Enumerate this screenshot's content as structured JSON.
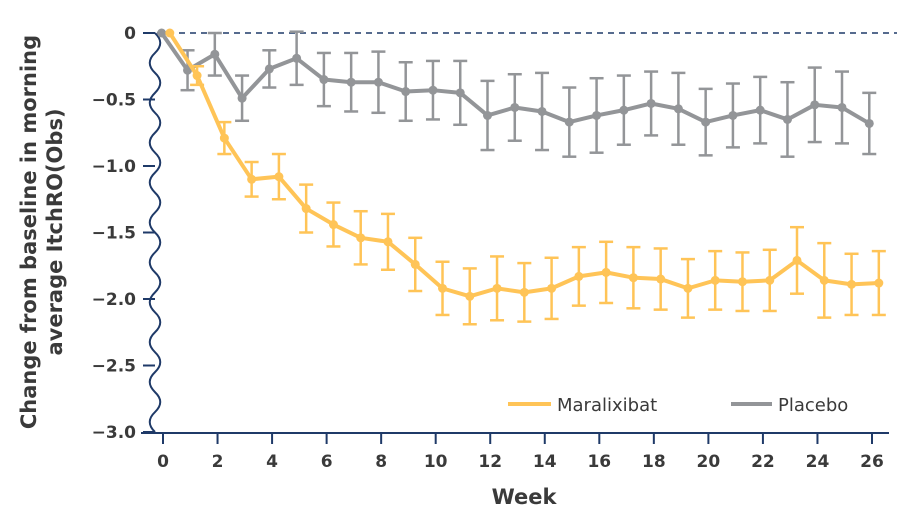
{
  "chart_data": {
    "type": "line",
    "title": "",
    "xlabel": "Week",
    "ylabel_lines": [
      "Change from baseline in morning",
      "average ItchRO(Obs)"
    ],
    "xlim": [
      0,
      26
    ],
    "ylim": [
      -3.0,
      0
    ],
    "x_ticks": [
      "0",
      "2",
      "4",
      "6",
      "8",
      "10",
      "12",
      "14",
      "16",
      "18",
      "20",
      "22",
      "24",
      "26"
    ],
    "y_ticks": [
      "0",
      "−0.5",
      "−1.0",
      "−1.5",
      "−2.0",
      "−2.5",
      "−3.0"
    ],
    "y_tick_values": [
      0,
      -0.5,
      -1.0,
      -1.5,
      -2.0,
      -2.5,
      -3.0
    ],
    "reference_line": {
      "y": 0,
      "style": "dashed"
    },
    "grid": false,
    "legend_position": "bottom-right",
    "x": [
      0,
      1,
      2,
      3,
      4,
      5,
      6,
      7,
      8,
      9,
      10,
      11,
      12,
      13,
      14,
      15,
      16,
      17,
      18,
      19,
      20,
      21,
      22,
      23,
      24,
      25,
      26
    ],
    "series": [
      {
        "name": "Maralixibat",
        "color": "#FFC457",
        "values": [
          0,
          -0.32,
          -0.79,
          -1.1,
          -1.08,
          -1.32,
          -1.44,
          -1.54,
          -1.57,
          -1.74,
          -1.92,
          -1.98,
          -1.92,
          -1.95,
          -1.92,
          -1.83,
          -1.8,
          -1.84,
          -1.85,
          -1.92,
          -1.86,
          -1.87,
          -1.86,
          -1.71,
          -1.86,
          -1.89,
          -1.88
        ],
        "error": [
          0,
          0.07,
          0.12,
          0.13,
          0.17,
          0.18,
          0.165,
          0.2,
          0.21,
          0.2,
          0.2,
          0.21,
          0.24,
          0.22,
          0.23,
          0.22,
          0.23,
          0.23,
          0.23,
          0.22,
          0.22,
          0.22,
          0.23,
          0.25,
          0.28,
          0.23,
          0.24
        ]
      },
      {
        "name": "Placebo",
        "color": "#939598",
        "values": [
          0,
          -0.28,
          -0.16,
          -0.49,
          -0.27,
          -0.19,
          -0.35,
          -0.37,
          -0.37,
          -0.44,
          -0.43,
          -0.45,
          -0.62,
          -0.56,
          -0.59,
          -0.67,
          -0.62,
          -0.58,
          -0.53,
          -0.57,
          -0.67,
          -0.62,
          -0.58,
          -0.65,
          -0.54,
          -0.56,
          -0.68
        ],
        "error": [
          0,
          0.15,
          0.16,
          0.17,
          0.14,
          0.2,
          0.2,
          0.22,
          0.23,
          0.22,
          0.22,
          0.24,
          0.26,
          0.25,
          0.29,
          0.26,
          0.28,
          0.26,
          0.24,
          0.27,
          0.25,
          0.24,
          0.25,
          0.28,
          0.28,
          0.27,
          0.23
        ]
      }
    ],
    "axis_color": "#1F3A68"
  }
}
